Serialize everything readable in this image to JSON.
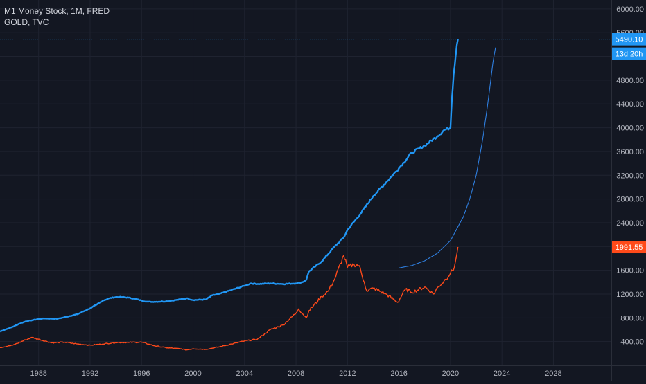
{
  "legend": {
    "series1": "M1 Money Stock, 1M, FRED",
    "series2": "GOLD, TVC"
  },
  "price_badges": {
    "m1_value": "5490.10",
    "m1_countdown": "13d 20h",
    "gold_value": "1991.55"
  },
  "colors": {
    "background": "#131722",
    "grid": "#1f2330",
    "m1": "#2196f3",
    "gold": "#ff4a1a",
    "curve": "#2f7fe0",
    "axis_text": "#b2b5be"
  },
  "chart_data": {
    "type": "line",
    "y_axis": {
      "ticks": [
        400,
        800,
        1200,
        1600,
        2000,
        2400,
        2800,
        3200,
        3600,
        4000,
        4400,
        4800,
        5200,
        5600,
        6000
      ],
      "tick_labels": [
        "400.00",
        "800.00",
        "1200.00",
        "1600.00",
        "2000.00",
        "2400.00",
        "2800.00",
        "3200.00",
        "3600.00",
        "4000.00",
        "4400.00",
        "4800.00",
        "5200.00",
        "5600.00",
        "6000.00"
      ],
      "range": [
        0,
        6150
      ]
    },
    "x_axis": {
      "ticks": [
        1988,
        1992,
        1996,
        2000,
        2004,
        2008,
        2012,
        2016,
        2020,
        2024,
        2028
      ],
      "tick_labels": [
        "1988",
        "1992",
        "1996",
        "2000",
        "2004",
        "2008",
        "2012",
        "2016",
        "2020",
        "2024",
        "2028"
      ],
      "range": [
        1985,
        2032.5
      ]
    },
    "series": [
      {
        "name": "M1 Money Stock, 1M, FRED",
        "x": [
          1985.0,
          1985.5,
          1986.0,
          1986.5,
          1987.0,
          1987.5,
          1988.0,
          1988.5,
          1989.0,
          1989.5,
          1990.0,
          1991.0,
          1992.0,
          1992.5,
          1993.0,
          1993.5,
          1994.0,
          1994.5,
          1995.0,
          1995.5,
          1996.0,
          1996.5,
          1997.0,
          1998.0,
          1999.0,
          1999.5,
          2000.0,
          2001.0,
          2001.5,
          2002.0,
          2003.0,
          2004.0,
          2004.5,
          2005.0,
          2006.0,
          2007.0,
          2008.0,
          2008.5,
          2008.8,
          2009.0,
          2010.0,
          2011.0,
          2011.7,
          2012.0,
          2013.0,
          2014.0,
          2015.0,
          2016.0,
          2017.0,
          2018.0,
          2019.0,
          2019.5,
          2020.0,
          2020.1,
          2020.25,
          2020.4,
          2020.5,
          2020.58
        ],
        "values": [
          570,
          610,
          650,
          700,
          740,
          760,
          780,
          790,
          785,
          785,
          810,
          860,
          960,
          1020,
          1090,
          1130,
          1150,
          1150,
          1140,
          1120,
          1090,
          1070,
          1070,
          1080,
          1110,
          1130,
          1100,
          1110,
          1180,
          1200,
          1270,
          1340,
          1380,
          1370,
          1380,
          1370,
          1380,
          1400,
          1440,
          1580,
          1750,
          2000,
          2150,
          2280,
          2550,
          2850,
          3080,
          3320,
          3580,
          3700,
          3860,
          3960,
          4000,
          4450,
          4900,
          5200,
          5400,
          5490.1
        ]
      },
      {
        "name": "GOLD, TVC",
        "x": [
          1985.0,
          1986.0,
          1987.0,
          1987.5,
          1988.0,
          1989.0,
          1990.0,
          1991.0,
          1992.0,
          1993.0,
          1994.0,
          1995.0,
          1996.0,
          1997.0,
          1998.0,
          1999.0,
          1999.5,
          2000.0,
          2001.0,
          2002.0,
          2003.0,
          2004.0,
          2005.0,
          2006.0,
          2006.5,
          2007.0,
          2008.0,
          2008.2,
          2008.8,
          2009.0,
          2010.0,
          2010.5,
          2011.0,
          2011.7,
          2012.0,
          2012.5,
          2012.9,
          2013.3,
          2013.5,
          2014.0,
          2015.0,
          2015.9,
          2016.5,
          2017.0,
          2018.0,
          2018.7,
          2019.0,
          2019.5,
          2020.0,
          2020.3,
          2020.5,
          2020.58
        ],
        "values": [
          300,
          340,
          430,
          470,
          440,
          380,
          390,
          360,
          340,
          360,
          385,
          385,
          390,
          330,
          295,
          280,
          260,
          280,
          270,
          310,
          360,
          410,
          440,
          600,
          640,
          680,
          880,
          950,
          800,
          920,
          1160,
          1250,
          1450,
          1850,
          1650,
          1700,
          1680,
          1400,
          1250,
          1300,
          1200,
          1060,
          1280,
          1230,
          1320,
          1200,
          1310,
          1420,
          1550,
          1650,
          1880,
          1991.55
        ]
      },
      {
        "name": "",
        "x": [
          2016.0,
          2017.0,
          2018.0,
          2019.0,
          2020.0,
          2021.0,
          2021.5,
          2022.0,
          2022.5,
          2022.9,
          2023.3,
          2023.5
        ],
        "values": [
          1640,
          1680,
          1760,
          1890,
          2100,
          2500,
          2800,
          3200,
          3800,
          4400,
          5100,
          5350
        ]
      }
    ]
  }
}
